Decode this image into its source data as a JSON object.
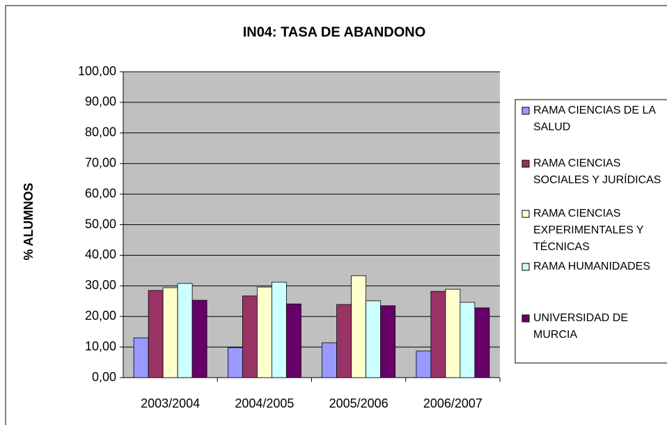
{
  "chart_data": {
    "type": "bar",
    "title": "IN04: TASA DE ABANDONO",
    "y_label": "% ALUMNOS",
    "categories": [
      "2003/2004",
      "2004/2005",
      "2005/2006",
      "2006/2007"
    ],
    "series": [
      {
        "name": "RAMA CIENCIAS DE LA SALUD",
        "color": "#9999ff",
        "values": [
          13.0,
          9.8,
          11.4,
          8.7
        ]
      },
      {
        "name": "RAMA CIENCIAS SOCIALES Y JURÍDICAS",
        "color": "#993366",
        "values": [
          28.5,
          26.7,
          23.9,
          28.2
        ]
      },
      {
        "name": "RAMA CIENCIAS EXPERIMENTALES Y TÉCNICAS",
        "color": "#ffffcc",
        "values": [
          29.4,
          29.6,
          33.3,
          28.9
        ]
      },
      {
        "name": "RAMA HUMANIDADES",
        "color": "#ccffff",
        "values": [
          30.8,
          31.2,
          25.1,
          24.6
        ]
      },
      {
        "name": "UNIVERSIDAD DE MURCIA",
        "color": "#660066",
        "values": [
          25.3,
          24.1,
          23.5,
          22.8
        ]
      }
    ],
    "ylim": [
      0,
      100
    ],
    "yticks": [
      {
        "value": 0,
        "label": "0,00"
      },
      {
        "value": 10,
        "label": "10,00"
      },
      {
        "value": 20,
        "label": "20,00"
      },
      {
        "value": 30,
        "label": "30,00"
      },
      {
        "value": 40,
        "label": "40,00"
      },
      {
        "value": 50,
        "label": "50,00"
      },
      {
        "value": 60,
        "label": "60,00"
      },
      {
        "value": 70,
        "label": "70,00"
      },
      {
        "value": 80,
        "label": "80,00"
      },
      {
        "value": 90,
        "label": "90,00"
      },
      {
        "value": 100,
        "label": "100,00"
      }
    ],
    "grid": true,
    "legend": "right"
  }
}
